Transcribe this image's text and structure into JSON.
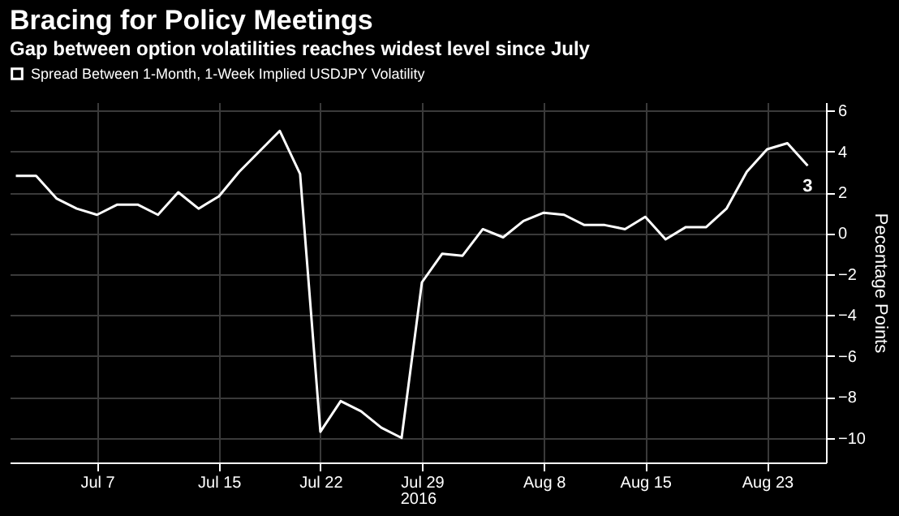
{
  "chart_data": {
    "type": "line",
    "title": "Bracing for Policy Meetings",
    "subtitle": "Gap between option volatilities reaches widest level since July",
    "xlabel": "2016",
    "ylabel": "Pecentage Points",
    "categories": [
      null,
      null,
      null,
      null,
      "Jul 7",
      null,
      null,
      null,
      null,
      null,
      "Jul 15",
      null,
      null,
      null,
      null,
      "Jul 22",
      null,
      null,
      null,
      null,
      "Jul 29",
      null,
      null,
      null,
      null,
      null,
      "Aug 8",
      null,
      null,
      null,
      null,
      "Aug 15",
      null,
      null,
      null,
      null,
      null,
      "Aug 23",
      null,
      null
    ],
    "series": [
      {
        "name": "Spread Between 1-Month, 1-Week Implied USDJPY Volatility",
        "color": "#ffffff",
        "values": [
          2.8,
          2.8,
          1.7,
          1.2,
          0.9,
          1.4,
          1.4,
          0.9,
          2.0,
          1.2,
          1.8,
          3.0,
          4.0,
          5.0,
          2.9,
          -9.7,
          -8.2,
          -8.7,
          -9.5,
          -10.0,
          -2.4,
          -1.0,
          -1.1,
          0.2,
          -0.2,
          0.6,
          1.0,
          0.9,
          0.4,
          0.4,
          0.2,
          0.8,
          -0.3,
          0.3,
          0.3,
          1.2,
          3.0,
          4.1,
          4.4,
          3.3
        ],
        "value_labels": [
          null,
          null,
          null,
          null,
          null,
          null,
          null,
          null,
          null,
          null,
          null,
          null,
          null,
          null,
          null,
          null,
          null,
          null,
          null,
          null,
          null,
          null,
          null,
          null,
          null,
          null,
          null,
          null,
          null,
          null,
          null,
          null,
          null,
          null,
          null,
          null,
          null,
          null,
          null,
          "3"
        ]
      }
    ],
    "ylim": [
      -11.2,
      6.4
    ],
    "yticks": [
      -10,
      -8,
      -6,
      -4,
      -2,
      0,
      2,
      4,
      6
    ],
    "grid": true,
    "legend": "top left",
    "marker": "none",
    "line_style": "solid"
  }
}
